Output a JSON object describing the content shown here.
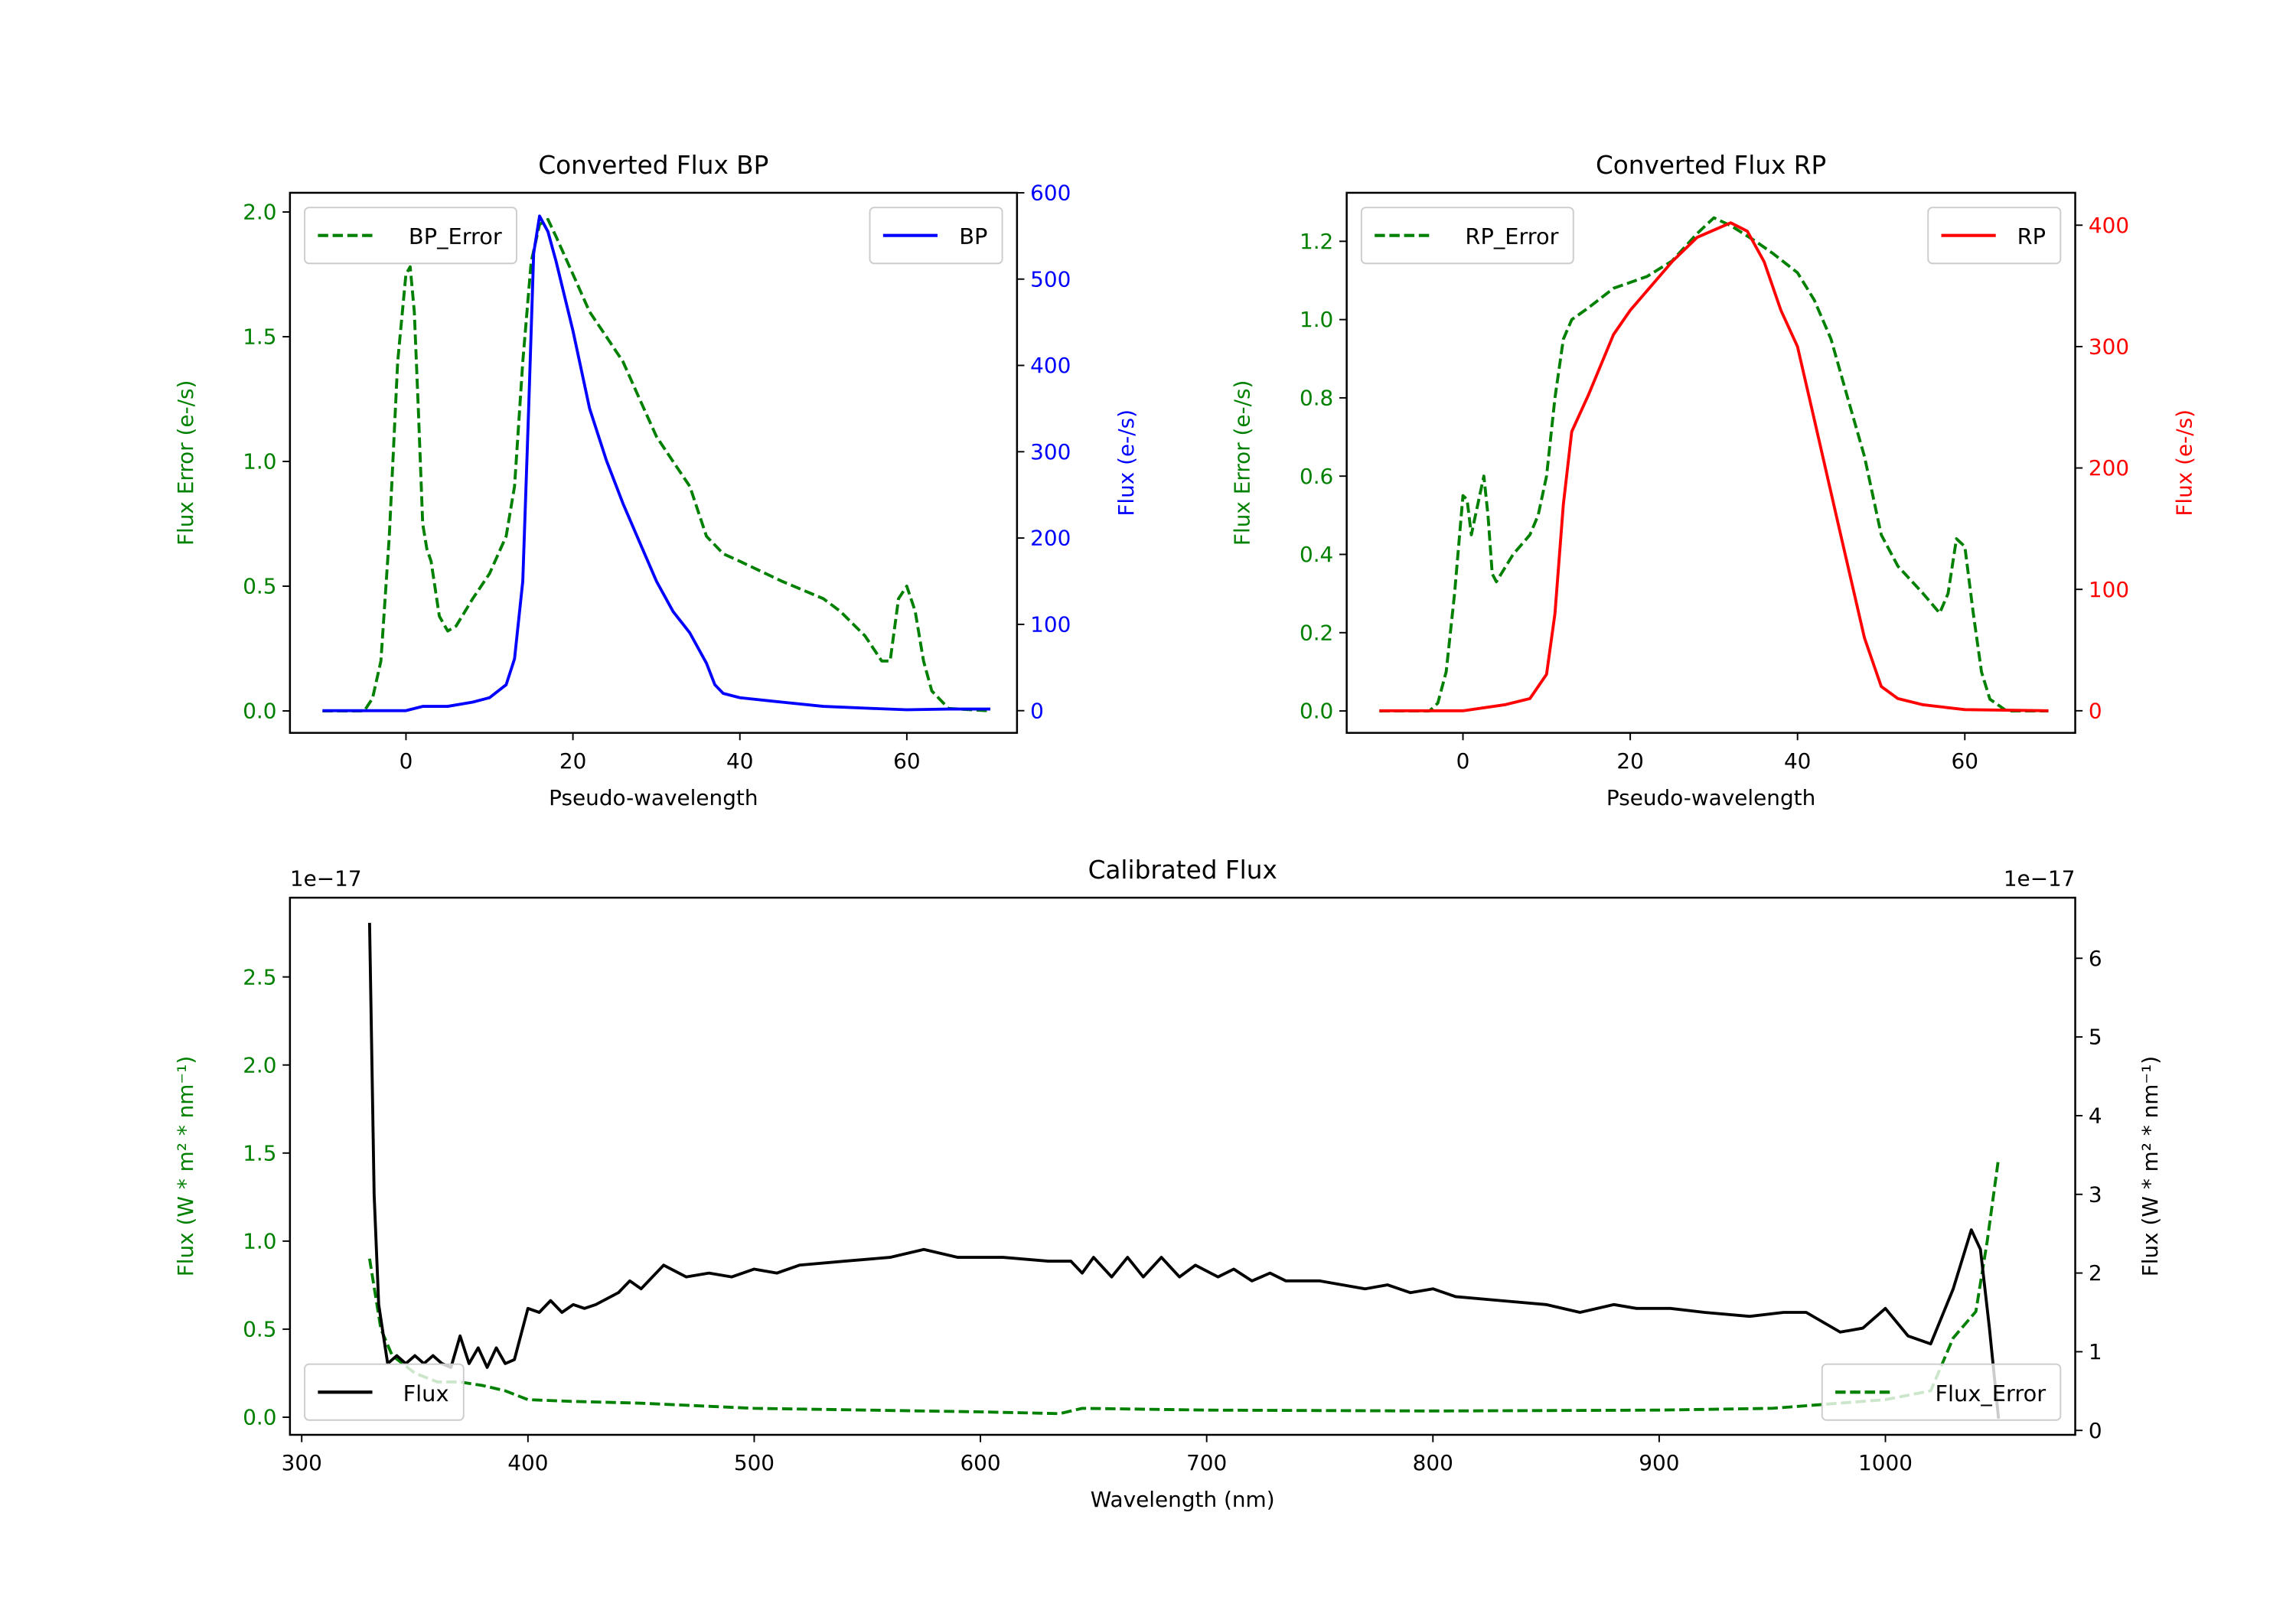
{
  "chart_data": [
    {
      "type": "line",
      "title": "Converted Flux BP",
      "xlabel": "Pseudo-wavelength",
      "ylabel_left": "Flux Error (e-/s)",
      "ylabel_right": "Flux (e-/s)",
      "xlim": [
        -13.9,
        73.2
      ],
      "ylim_left": [
        -0.088,
        2.077
      ],
      "ylim_right": [
        -25.7,
        600
      ],
      "xticks": [
        0,
        20,
        40,
        60
      ],
      "yticks_left": [
        "0.0",
        "0.5",
        "1.0",
        "1.5",
        "2.0"
      ],
      "yticks_right": [
        "0",
        "100",
        "200",
        "300",
        "400",
        "500",
        "600"
      ],
      "left_color": "#008000",
      "right_color": "#0000ff",
      "series": [
        {
          "name": "BP_Error",
          "axis": "left",
          "style": "dashed",
          "color": "#008000",
          "legend": "upper left",
          "x": [
            -10,
            -5,
            -4,
            -3,
            -2,
            -1,
            0,
            0.5,
            1,
            1.5,
            2,
            2.5,
            3,
            4,
            5,
            6,
            8,
            10,
            12,
            13,
            14,
            15,
            16,
            17,
            18,
            20,
            22,
            24,
            26,
            28,
            30,
            32,
            34,
            36,
            38,
            40,
            45,
            50,
            52,
            55,
            57,
            58,
            59,
            60,
            61,
            62,
            63,
            65,
            70
          ],
          "y": [
            0,
            0,
            0.05,
            0.2,
            0.7,
            1.4,
            1.75,
            1.78,
            1.6,
            1.2,
            0.75,
            0.65,
            0.6,
            0.38,
            0.32,
            0.34,
            0.45,
            0.55,
            0.7,
            0.9,
            1.4,
            1.8,
            1.95,
            1.97,
            1.9,
            1.75,
            1.6,
            1.5,
            1.4,
            1.25,
            1.1,
            1.0,
            0.9,
            0.7,
            0.63,
            0.6,
            0.52,
            0.45,
            0.4,
            0.3,
            0.2,
            0.2,
            0.45,
            0.5,
            0.4,
            0.2,
            0.08,
            0.01,
            0
          ]
        },
        {
          "name": "BP",
          "axis": "right",
          "style": "solid",
          "color": "#0000ff",
          "legend": "upper right",
          "x": [
            -10,
            -5,
            0,
            2,
            5,
            8,
            10,
            12,
            13,
            14,
            14.7,
            15.3,
            16,
            17,
            18,
            20,
            22,
            24,
            26,
            28,
            30,
            32,
            34,
            36,
            37,
            38,
            40,
            45,
            50,
            55,
            60,
            65,
            70
          ],
          "y": [
            0,
            0,
            0,
            5,
            5,
            10,
            15,
            30,
            60,
            150,
            350,
            530,
            573,
            555,
            520,
            440,
            350,
            290,
            240,
            195,
            150,
            115,
            90,
            55,
            30,
            20,
            15,
            10,
            5,
            3,
            1,
            2,
            2
          ]
        }
      ]
    },
    {
      "type": "line",
      "title": "Converted Flux RP",
      "xlabel": "Pseudo-wavelength",
      "ylabel_left": "Flux Error (e-/s)",
      "ylabel_right": "Flux (e-/s)",
      "xlim": [
        -13.9,
        73.2
      ],
      "ylim_left": [
        -0.056,
        1.324
      ],
      "ylim_right": [
        -18.2,
        426.7
      ],
      "xticks": [
        0,
        20,
        40,
        60
      ],
      "yticks_left": [
        "0.0",
        "0.2",
        "0.4",
        "0.6",
        "0.8",
        "1.0",
        "1.2"
      ],
      "yticks_right": [
        "0",
        "100",
        "200",
        "300",
        "400"
      ],
      "left_color": "#008000",
      "right_color": "#ff0000",
      "series": [
        {
          "name": "RP_Error",
          "axis": "left",
          "style": "dashed",
          "color": "#008000",
          "legend": "upper left",
          "x": [
            -10,
            -4,
            -3,
            -2,
            -1,
            0,
            0.5,
            1,
            1.5,
            2.5,
            3,
            3.5,
            4,
            6,
            8,
            9,
            10,
            11,
            12,
            13,
            15,
            18,
            22,
            25,
            28,
            30,
            32,
            35,
            37,
            40,
            42,
            44,
            46,
            48,
            50,
            52,
            55,
            57,
            58,
            59,
            60,
            61,
            62,
            63,
            65,
            70
          ],
          "y": [
            0,
            0,
            0.02,
            0.1,
            0.3,
            0.55,
            0.54,
            0.45,
            0.5,
            0.6,
            0.5,
            0.35,
            0.33,
            0.4,
            0.45,
            0.5,
            0.6,
            0.8,
            0.95,
            1.0,
            1.03,
            1.08,
            1.11,
            1.15,
            1.22,
            1.26,
            1.24,
            1.2,
            1.17,
            1.12,
            1.05,
            0.95,
            0.8,
            0.65,
            0.45,
            0.37,
            0.3,
            0.25,
            0.3,
            0.44,
            0.42,
            0.25,
            0.1,
            0.03,
            0,
            0
          ]
        },
        {
          "name": "RP",
          "axis": "right",
          "style": "solid",
          "color": "#ff0000",
          "legend": "upper right",
          "x": [
            -10,
            0,
            5,
            8,
            10,
            11,
            12,
            13,
            15,
            18,
            20,
            25,
            28,
            32,
            34,
            36,
            38,
            40,
            42,
            45,
            48,
            50,
            52,
            55,
            60,
            70
          ],
          "y": [
            0,
            0,
            5,
            10,
            30,
            80,
            170,
            230,
            260,
            310,
            330,
            370,
            390,
            402,
            395,
            370,
            330,
            300,
            240,
            150,
            60,
            20,
            10,
            5,
            1,
            0
          ]
        }
      ]
    },
    {
      "type": "line",
      "title": "Calibrated Flux",
      "xlabel": "Wavelength (nm)",
      "ylabel_left": "Flux (W * m² * nm⁻¹)",
      "ylabel_right": "Flux (W * m² * nm⁻¹)",
      "offset_left": "1e−17",
      "offset_right": "1e−17",
      "xlim": [
        294.8,
        1083.9
      ],
      "ylim_left": [
        -0.1,
        2.95
      ],
      "ylim_right": [
        -0.056,
        6.77
      ],
      "xticks": [
        300,
        400,
        500,
        600,
        700,
        800,
        900,
        1000
      ],
      "yticks_left": [
        "0.0",
        "0.5",
        "1.0",
        "1.5",
        "2.0",
        "2.5"
      ],
      "yticks_right": [
        "0",
        "1",
        "2",
        "3",
        "4",
        "5",
        "6"
      ],
      "left_color": "#008000",
      "right_color": "#000000",
      "series": [
        {
          "name": "Flux_Error",
          "axis": "left",
          "style": "dashed",
          "color": "#008000",
          "legend": "lower right",
          "x": [
            330,
            335,
            340,
            350,
            360,
            370,
            380,
            390,
            400,
            420,
            450,
            500,
            550,
            600,
            635,
            645,
            700,
            800,
            900,
            950,
            1000,
            1020,
            1030,
            1040,
            1045,
            1050
          ],
          "y": [
            0.9,
            0.5,
            0.35,
            0.25,
            0.2,
            0.2,
            0.18,
            0.15,
            0.1,
            0.09,
            0.08,
            0.05,
            0.04,
            0.03,
            0.02,
            0.05,
            0.04,
            0.035,
            0.04,
            0.05,
            0.1,
            0.15,
            0.45,
            0.6,
            1.0,
            1.47
          ]
        },
        {
          "name": "Flux",
          "axis": "right",
          "style": "solid",
          "color": "#000000",
          "legend": "lower left",
          "x": [
            330,
            332,
            334,
            338,
            342,
            346,
            350,
            354,
            358,
            362,
            366,
            370,
            374,
            378,
            382,
            386,
            390,
            394,
            400,
            405,
            410,
            415,
            420,
            425,
            430,
            440,
            445,
            450,
            460,
            470,
            480,
            490,
            500,
            510,
            520,
            540,
            560,
            575,
            590,
            610,
            630,
            640,
            645,
            650,
            658,
            665,
            672,
            680,
            688,
            695,
            705,
            712,
            720,
            728,
            735,
            750,
            770,
            780,
            790,
            800,
            810,
            830,
            850,
            865,
            880,
            890,
            905,
            920,
            940,
            955,
            965,
            980,
            990,
            1000,
            1010,
            1020,
            1030,
            1038,
            1042,
            1046,
            1050
          ],
          "y": [
            6.45,
            3.0,
            1.6,
            0.85,
            0.95,
            0.85,
            0.95,
            0.85,
            0.95,
            0.85,
            0.8,
            1.2,
            0.85,
            1.05,
            0.8,
            1.05,
            0.85,
            0.9,
            1.55,
            1.5,
            1.65,
            1.5,
            1.6,
            1.55,
            1.6,
            1.75,
            1.9,
            1.8,
            2.1,
            1.95,
            2.0,
            1.95,
            2.05,
            2.0,
            2.1,
            2.15,
            2.2,
            2.3,
            2.2,
            2.2,
            2.15,
            2.15,
            2.0,
            2.2,
            1.95,
            2.2,
            1.95,
            2.2,
            1.95,
            2.1,
            1.95,
            2.05,
            1.9,
            2.0,
            1.9,
            1.9,
            1.8,
            1.85,
            1.75,
            1.8,
            1.7,
            1.65,
            1.6,
            1.5,
            1.6,
            1.55,
            1.55,
            1.5,
            1.45,
            1.5,
            1.5,
            1.25,
            1.3,
            1.55,
            1.2,
            1.1,
            1.8,
            2.55,
            2.3,
            1.3,
            0.15
          ]
        }
      ]
    }
  ]
}
